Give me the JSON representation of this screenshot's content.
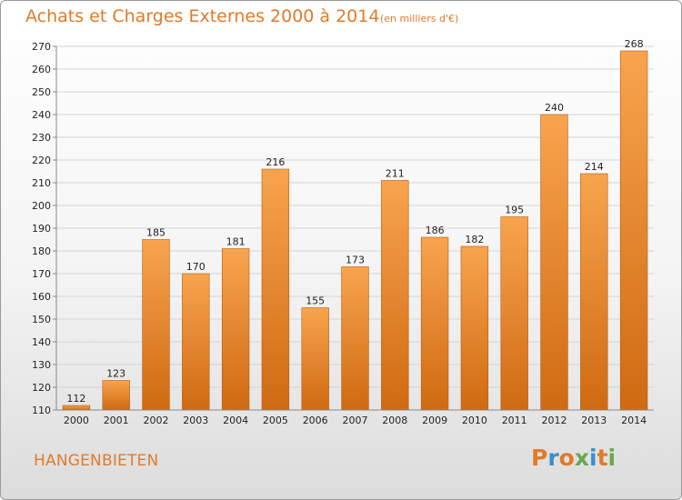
{
  "header": {
    "title": "Achats et Charges Externes 2000 à 2014",
    "subtitle": "(en milliers d'€)"
  },
  "footer": {
    "place": "HANGENBIETEN",
    "logo_text": "Proxiti",
    "logo_colors": [
      "#e07b2a",
      "#3a8fd0",
      "#e07b2a",
      "#6aa84f",
      "#3a8fd0",
      "#e07b2a",
      "#6aa84f"
    ]
  },
  "colors": {
    "bar_top": "#f8a44e",
    "bar_bottom": "#cf6a12",
    "accent": "#e07b2a",
    "grid": "#d4d4d4",
    "axis": "#888888"
  },
  "chart_data": {
    "type": "bar",
    "title": "Achats et Charges Externes 2000 à 2014",
    "subtitle": "(en milliers d'€)",
    "categories": [
      "2000",
      "2001",
      "2002",
      "2003",
      "2004",
      "2005",
      "2006",
      "2007",
      "2008",
      "2009",
      "2010",
      "2011",
      "2012",
      "2013",
      "2014"
    ],
    "values": [
      112,
      123,
      185,
      170,
      181,
      216,
      155,
      173,
      211,
      186,
      182,
      195,
      240,
      214,
      268
    ],
    "ylim": [
      110,
      270
    ],
    "yticks": [
      110,
      120,
      130,
      140,
      150,
      160,
      170,
      180,
      190,
      200,
      210,
      220,
      230,
      240,
      250,
      260,
      270
    ],
    "grid": true,
    "data_labels": true
  }
}
